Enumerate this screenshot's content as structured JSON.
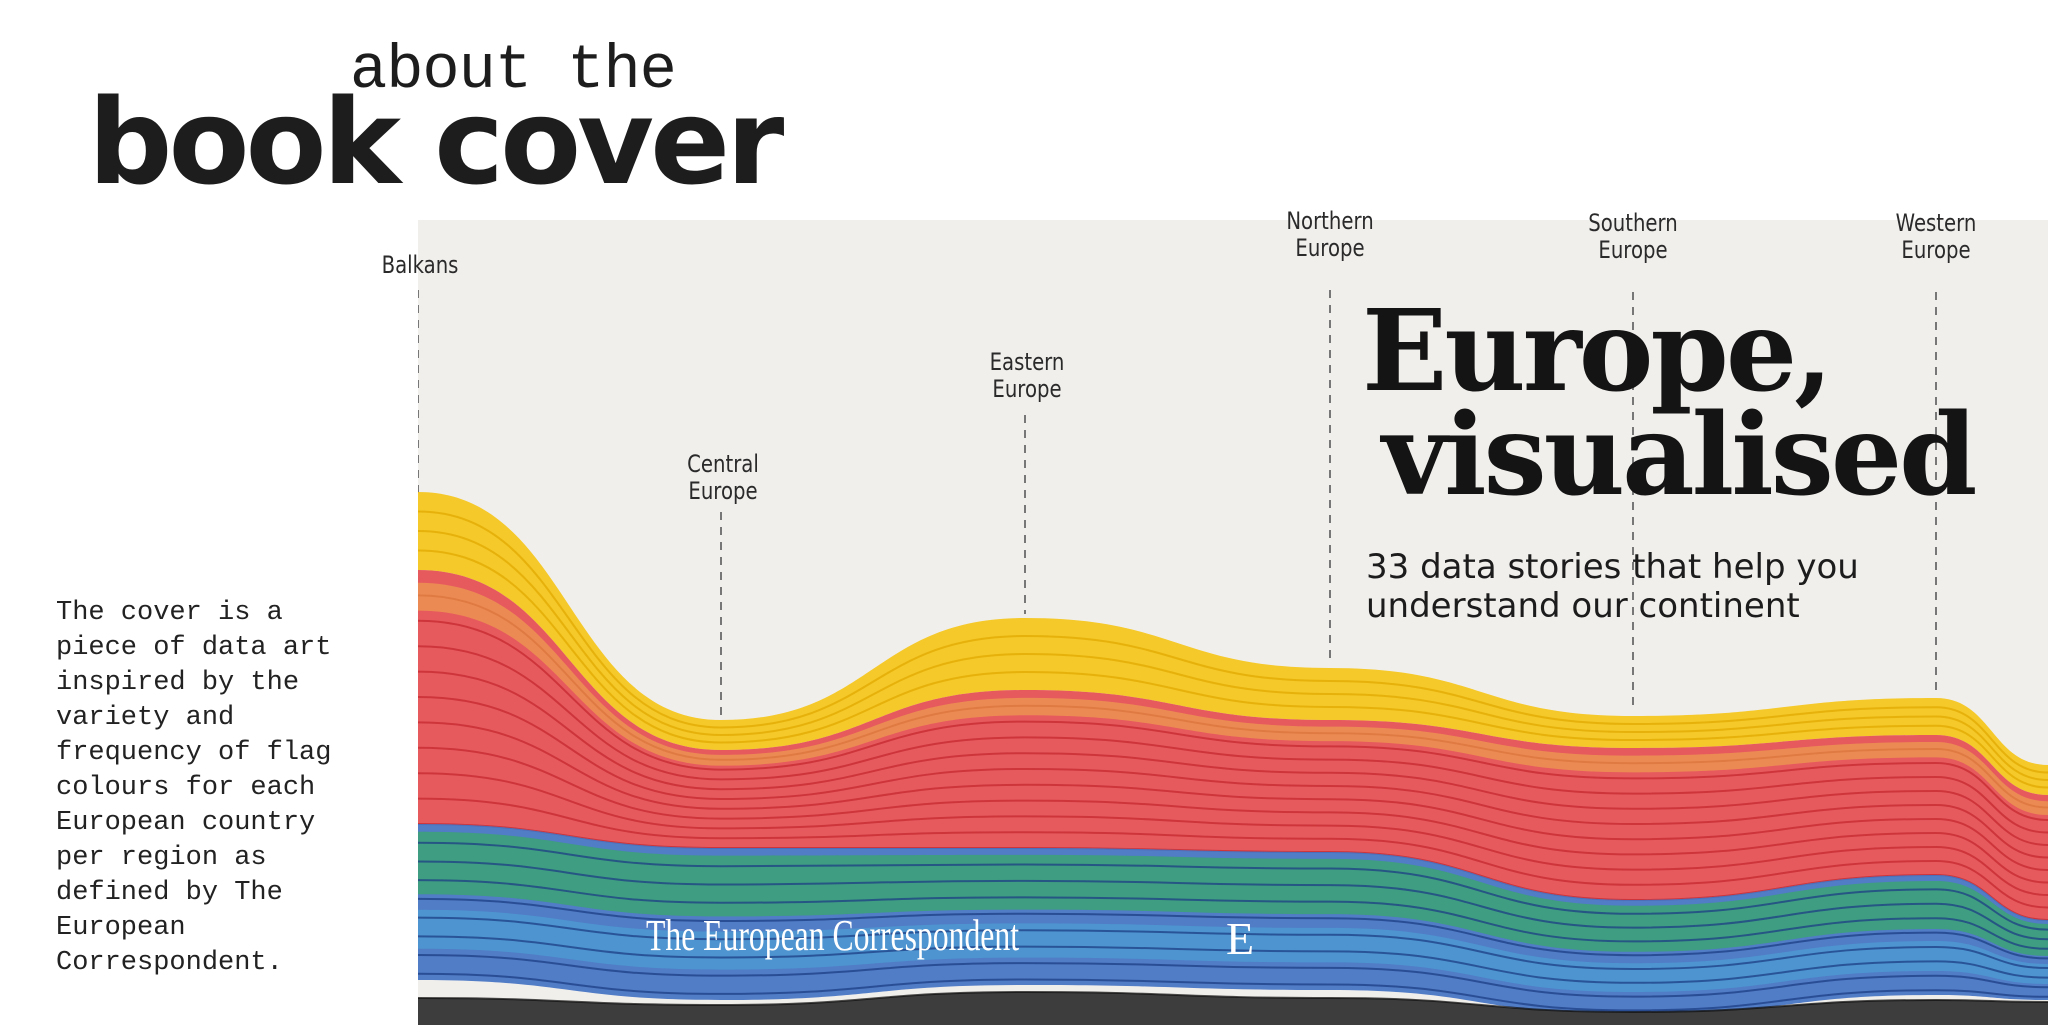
{
  "heading": {
    "line1": "about the",
    "line2": "book cover"
  },
  "description": "The cover is a piece of data art inspired by the variety and frequency of flag colours for each European country per region as defined by The European Correspondent.",
  "cover": {
    "title_line1": "Europe,",
    "title_line2": "visualised",
    "subtitle": "33 data stories that help you understand our continent",
    "publisher": "The European Correspondent",
    "publisher_mark": "E"
  },
  "regions": [
    {
      "line1": "Balkans",
      "line2": ""
    },
    {
      "line1": "Central",
      "line2": "Europe"
    },
    {
      "line1": "Eastern",
      "line2": "Europe"
    },
    {
      "line1": "Northern",
      "line2": "Europe"
    },
    {
      "line1": "Southern",
      "line2": "Europe"
    },
    {
      "line1": "Western",
      "line2": "Europe"
    }
  ],
  "colors": {
    "yellow": "#f5c518",
    "red": "#e4464a",
    "green": "#3aa86a",
    "blue": "#3f6fc2",
    "black": "#3d3d3d",
    "background": "#f1efec"
  }
}
